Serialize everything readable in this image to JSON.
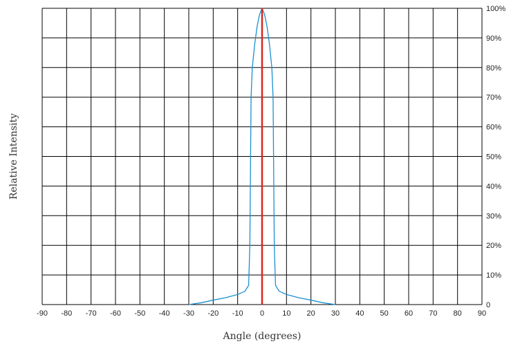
{
  "chart_data": {
    "type": "line",
    "title": "",
    "xlabel": "Angle (degrees)",
    "ylabel": "Relative Intensity",
    "xlim": [
      -90,
      90
    ],
    "ylim": [
      0,
      100
    ],
    "x_ticks": [
      -90,
      -80,
      -70,
      -60,
      -50,
      -40,
      -30,
      -20,
      -10,
      0,
      10,
      20,
      30,
      40,
      50,
      60,
      70,
      80,
      90
    ],
    "x_tick_labels": [
      "-90",
      "-80",
      "-70",
      "-60",
      "-50",
      "-40",
      "-30",
      "-20",
      "-10",
      "0",
      "10",
      "20",
      "30",
      "40",
      "50",
      "60",
      "70",
      "80",
      "90"
    ],
    "y_ticks": [
      0,
      10,
      20,
      30,
      40,
      50,
      60,
      70,
      80,
      90,
      100
    ],
    "y_tick_labels": [
      "0",
      "10%",
      "20%",
      "30%",
      "40%",
      "50%",
      "60%",
      "70%",
      "80%",
      "90%",
      "100%"
    ],
    "y_axis_side": "right",
    "grid": true,
    "grid_color": "#000000",
    "series": [
      {
        "color": "#1a8fd0",
        "x": [
          -30,
          -25,
          -20,
          -15,
          -10,
          -7,
          -5.5,
          -5,
          -4.5,
          -4,
          -3,
          -2,
          -1,
          0,
          1,
          2,
          3,
          4,
          4.5,
          5,
          5.5,
          7,
          10,
          15,
          20,
          25,
          30
        ],
        "y": [
          0,
          0.6,
          1.5,
          2.3,
          3.4,
          4.5,
          6.5,
          20,
          70,
          80,
          88,
          94,
          98,
          100,
          98,
          94,
          88,
          80,
          70,
          20,
          6.5,
          4.5,
          3.4,
          2.3,
          1.5,
          0.6,
          0
        ]
      }
    ],
    "reference_line": {
      "x": 0,
      "color": "#d9261c"
    }
  }
}
